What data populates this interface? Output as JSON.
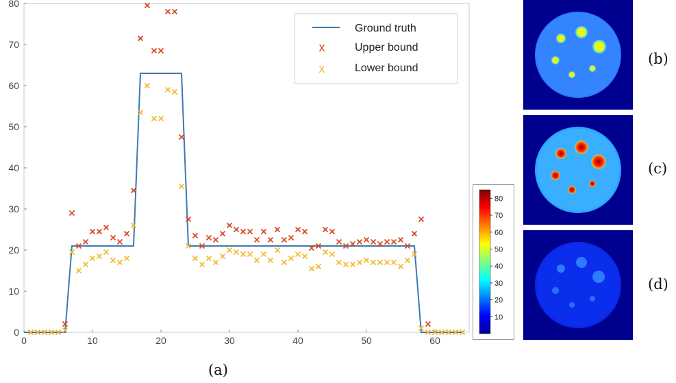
{
  "captions": {
    "a": "(a)",
    "b": "(b)",
    "c": "(c)",
    "d": "(d)"
  },
  "colors": {
    "ground_truth": "#3b7bb3",
    "upper_bound": "#d9441c",
    "lower_bound": "#f2b92a"
  },
  "chart_data": {
    "type": "line",
    "xlim": [
      0,
      65
    ],
    "ylim": [
      0,
      80
    ],
    "x_ticks": [
      0,
      10,
      20,
      30,
      40,
      50,
      60
    ],
    "y_ticks": [
      0,
      10,
      20,
      30,
      40,
      50,
      60,
      70,
      80
    ],
    "legend": {
      "placement": "top-right"
    },
    "series": [
      {
        "name": "Ground truth",
        "kind": "line",
        "x": [
          0,
          6,
          7,
          16,
          17,
          23,
          24,
          57,
          58,
          64
        ],
        "y": [
          0,
          0,
          21,
          21,
          63,
          63,
          21,
          21,
          0,
          0
        ]
      },
      {
        "name": "Upper bound",
        "kind": "marker",
        "x": [
          1,
          2,
          3,
          4,
          5,
          6,
          7,
          8,
          9,
          10,
          11,
          12,
          13,
          14,
          15,
          16,
          17,
          18,
          19,
          20,
          21,
          22,
          23,
          24,
          25,
          26,
          27,
          28,
          29,
          30,
          31,
          32,
          33,
          34,
          35,
          36,
          37,
          38,
          39,
          40,
          41,
          42,
          43,
          44,
          45,
          46,
          47,
          48,
          49,
          50,
          51,
          52,
          53,
          54,
          55,
          56,
          57,
          58,
          59,
          60,
          61,
          62,
          63,
          64
        ],
        "y": [
          0,
          0,
          0,
          0,
          0,
          2,
          29,
          21,
          22,
          24.5,
          24.5,
          25.5,
          23,
          22,
          24,
          34.5,
          71.5,
          79.5,
          68.5,
          68.5,
          78,
          78,
          47.5,
          27.5,
          23.5,
          21,
          23,
          22.5,
          24,
          26,
          25,
          24.5,
          24.5,
          22.5,
          24.5,
          22.5,
          25,
          22.5,
          23,
          25,
          24.5,
          20.5,
          21,
          25,
          24.5,
          22,
          21,
          21.5,
          22,
          22.5,
          22,
          21.5,
          22,
          22,
          22.5,
          21,
          24,
          27.5,
          2,
          0,
          0,
          0,
          0,
          0
        ]
      },
      {
        "name": "Lower bound",
        "kind": "marker",
        "x": [
          1,
          2,
          3,
          4,
          5,
          6,
          7,
          8,
          9,
          10,
          11,
          12,
          13,
          14,
          15,
          16,
          17,
          18,
          19,
          20,
          21,
          22,
          23,
          24,
          25,
          26,
          27,
          28,
          29,
          30,
          31,
          32,
          33,
          34,
          35,
          36,
          37,
          38,
          39,
          40,
          41,
          42,
          43,
          44,
          45,
          46,
          47,
          48,
          49,
          50,
          51,
          52,
          53,
          54,
          55,
          56,
          57,
          58,
          59,
          60,
          61,
          62,
          63,
          64
        ],
        "y": [
          0,
          0,
          0,
          0,
          0,
          0.5,
          19.5,
          15,
          16.5,
          18,
          18.5,
          19.5,
          17.5,
          17,
          18,
          26,
          53.5,
          60,
          52,
          52,
          59,
          58.5,
          35.5,
          21,
          18,
          16.5,
          18,
          17,
          18.5,
          20,
          19.5,
          19,
          19,
          17.5,
          19,
          17.5,
          20,
          17,
          18,
          19,
          18.5,
          15.5,
          16,
          19.5,
          19,
          17,
          16.5,
          16.5,
          17,
          17.5,
          17,
          17,
          17,
          17,
          16,
          17.5,
          19,
          1,
          0,
          0,
          0,
          0,
          0,
          0
        ]
      }
    ]
  },
  "colorbar": {
    "ticks": [
      10,
      20,
      30,
      40,
      50,
      60,
      70,
      80
    ],
    "range": [
      0,
      85
    ]
  }
}
